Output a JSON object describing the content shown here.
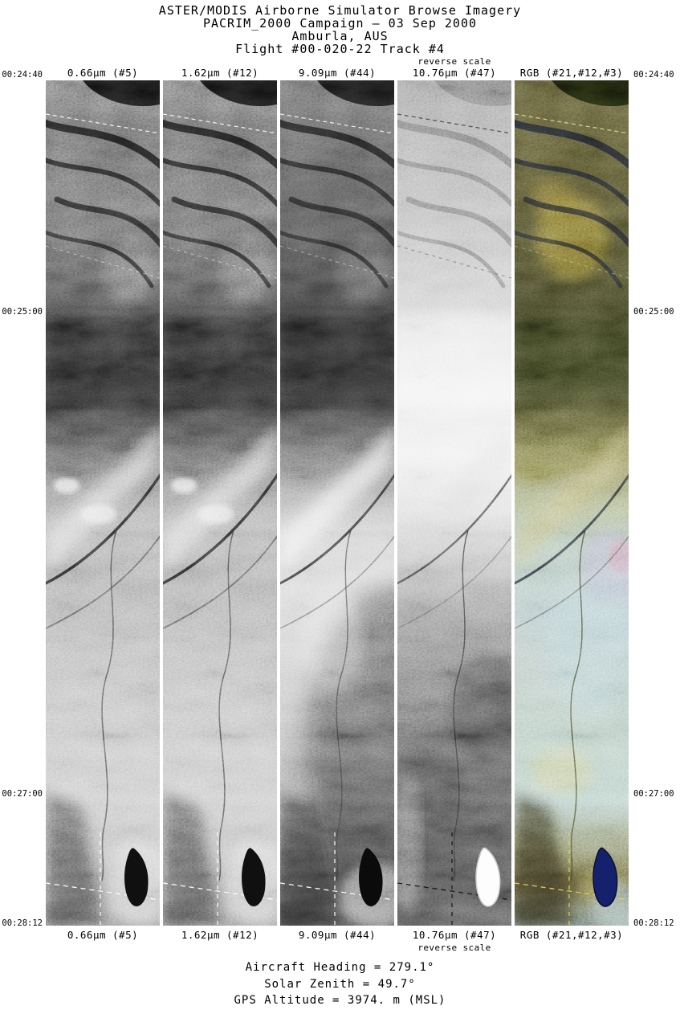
{
  "header": {
    "line1": "ASTER/MODIS Airborne Simulator Browse Imagery",
    "line2": "PACRIM_2000 Campaign — 03 Sep 2000",
    "line3": "Amburla, AUS",
    "line4": "Flight #00-020-22 Track #4"
  },
  "columns": [
    {
      "label": "0.66µm (#5)",
      "note": ""
    },
    {
      "label": "1.62µm (#12)",
      "note": ""
    },
    {
      "label": "9.09µm (#44)",
      "note": ""
    },
    {
      "label": "10.76µm (#47)",
      "note": "reverse scale"
    },
    {
      "label": "RGB (#21,#12,#3)",
      "note": ""
    }
  ],
  "times": [
    "00:24:40",
    "00:25:00",
    "00:27:00",
    "00:28:12"
  ],
  "footer": {
    "line1": "Aircraft Heading =  279.1°",
    "line2": "Solar Zenith =   49.7°",
    "line3": "GPS Altitude =   3974. m (MSL)"
  },
  "colors": {
    "background": "#ffffff",
    "text": "#000000",
    "rgb_lake_blue": "#16216e",
    "survey_dash_yellow": "#e3d84e",
    "survey_dash_white": "#ffffff"
  }
}
